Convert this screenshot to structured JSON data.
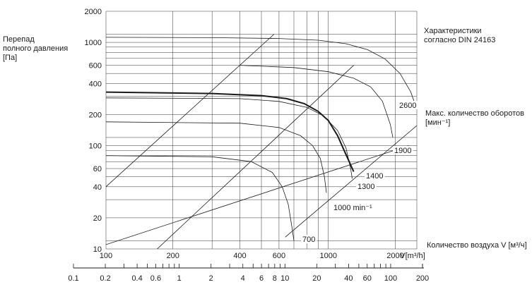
{
  "chart_data": {
    "type": "line",
    "x_scale": "log",
    "y_scale": "log",
    "xlim": [
      100,
      2500
    ],
    "ylim": [
      10,
      2000
    ],
    "x_ticks": [
      "100",
      "200",
      "400",
      "600",
      "1000",
      "2000"
    ],
    "y_ticks": [
      "10",
      "20",
      "40",
      "60",
      "100",
      "200",
      "400",
      "600",
      "1000",
      "2000"
    ],
    "x_label": "V[m³/h]",
    "x_axis_note": "Количество воздуха V [м³/ч]",
    "y_label": "Перепад\nполного давления\n[Па]",
    "right_annotation_1": "Характеристики\nсогласно DIN 24163",
    "right_annotation_2": "Макс. количество оборотов\n[мин⁻¹]",
    "grid": true,
    "series": [
      {
        "name": "2600",
        "label": "2600",
        "width": 0.8,
        "points": [
          [
            100,
            1120
          ],
          [
            300,
            1110
          ],
          [
            600,
            1090
          ],
          [
            900,
            1050
          ],
          [
            1200,
            970
          ],
          [
            1500,
            850
          ],
          [
            1800,
            690
          ],
          [
            2100,
            500
          ],
          [
            2350,
            330
          ],
          [
            2500,
            225
          ]
        ]
      },
      {
        "name": "1900",
        "label": "1900",
        "width": 0.8,
        "points": [
          [
            400,
            600
          ],
          [
            700,
            570
          ],
          [
            1000,
            520
          ],
          [
            1300,
            450
          ],
          [
            1550,
            370
          ],
          [
            1750,
            270
          ],
          [
            1900,
            160
          ],
          [
            1950,
            120
          ]
        ]
      },
      {
        "name": "1400",
        "label": "1400",
        "width": 2,
        "points": [
          [
            100,
            330
          ],
          [
            300,
            320
          ],
          [
            500,
            305
          ],
          [
            650,
            285
          ],
          [
            780,
            255
          ],
          [
            900,
            215
          ],
          [
            1000,
            175
          ],
          [
            1100,
            125
          ],
          [
            1200,
            82
          ],
          [
            1300,
            56
          ]
        ]
      },
      {
        "name": "1300",
        "label": "1300",
        "width": 0.8,
        "points": [
          [
            100,
            290
          ],
          [
            400,
            285
          ],
          [
            600,
            268
          ],
          [
            800,
            235
          ],
          [
            950,
            195
          ],
          [
            1100,
            140
          ],
          [
            1200,
            95
          ],
          [
            1260,
            60
          ],
          [
            1280,
            48
          ]
        ]
      },
      {
        "name": "1000",
        "label": "1000 min⁻¹",
        "width": 0.8,
        "points": [
          [
            100,
            170
          ],
          [
            400,
            165
          ],
          [
            600,
            150
          ],
          [
            750,
            125
          ],
          [
            850,
            100
          ],
          [
            920,
            75
          ],
          [
            960,
            50
          ],
          [
            980,
            35
          ]
        ]
      },
      {
        "name": "700",
        "label": "700",
        "width": 0.8,
        "points": [
          [
            100,
            80
          ],
          [
            300,
            78
          ],
          [
            450,
            70
          ],
          [
            560,
            55
          ],
          [
            620,
            40
          ],
          [
            660,
            27
          ],
          [
            690,
            15
          ],
          [
            700,
            12
          ]
        ]
      }
    ],
    "system_lines": [
      {
        "points": [
          [
            100,
            40
          ],
          [
            570,
            1200
          ]
        ]
      },
      {
        "points": [
          [
            170,
            10
          ],
          [
            1300,
            600
          ]
        ]
      },
      {
        "points": [
          [
            100,
            11
          ],
          [
            2300,
            100
          ]
        ]
      }
    ],
    "diagonal_extra": [
      {
        "points": [
          [
            640,
            13
          ],
          [
            2700,
            180
          ]
        ]
      }
    ],
    "secondary_axis": {
      "ticks": [
        "0.1",
        "0.2",
        "0.4",
        "0.6",
        "1",
        "2",
        "4",
        "6",
        "8",
        "10",
        "20",
        "40",
        "60",
        "100",
        "200"
      ]
    }
  }
}
